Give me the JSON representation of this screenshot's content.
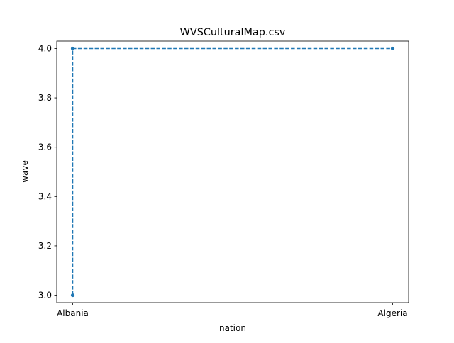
{
  "chart_data": {
    "type": "line",
    "title": "WVSCulturalMap.csv",
    "xlabel": "nation",
    "ylabel": "wave",
    "categories": [
      "Albania",
      "Algeria"
    ],
    "x": [
      "Albania",
      "Albania",
      "Algeria"
    ],
    "y": [
      3.0,
      4.0,
      4.0
    ],
    "ylim": [
      2.97,
      4.03
    ],
    "yticks": [
      "3.0",
      "3.2",
      "3.4",
      "3.6",
      "3.8",
      "4.0"
    ],
    "line_style": "dashed",
    "marker": "circle",
    "grid": false,
    "color": "#1f77b4"
  }
}
